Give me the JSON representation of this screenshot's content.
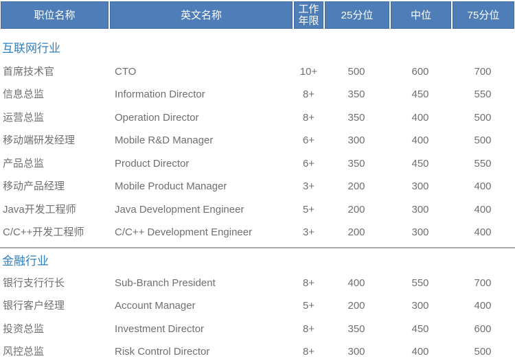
{
  "colors": {
    "header_bg": "#4e7db8",
    "header_border": "#3d6ba2",
    "header_text": "#ffffff",
    "section_title": "#2d7fc1",
    "body_text": "#6f6f6f",
    "divider": "#a9a9a9",
    "page_bg": "#ffffff"
  },
  "table": {
    "columns": [
      "职位名称",
      "英文名称",
      "工作年限",
      "25分位",
      "中位",
      "75分位"
    ],
    "sections": [
      {
        "title": "互联网行业",
        "rows": [
          {
            "position": "首席技术官",
            "english": "CTO",
            "years": "10+",
            "p25": "500",
            "median": "600",
            "p75": "700"
          },
          {
            "position": "信息总监",
            "english": "Information Director",
            "years": "8+",
            "p25": "350",
            "median": "450",
            "p75": "550"
          },
          {
            "position": "运营总监",
            "english": "Operation Director",
            "years": "8+",
            "p25": "350",
            "median": "400",
            "p75": "500"
          },
          {
            "position": "移动端研发经理",
            "english": "Mobile R&D Manager",
            "years": "6+",
            "p25": "300",
            "median": "400",
            "p75": "500"
          },
          {
            "position": "产品总监",
            "english": "Product Director",
            "years": "6+",
            "p25": "350",
            "median": "450",
            "p75": "550"
          },
          {
            "position": "移动产品经理",
            "english": "Mobile Product Manager",
            "years": "3+",
            "p25": "200",
            "median": "300",
            "p75": "400"
          },
          {
            "position": "Java开发工程师",
            "english": "Java Development Engineer",
            "years": "5+",
            "p25": "200",
            "median": "300",
            "p75": "400"
          },
          {
            "position": "C/C++开发工程师",
            "english": "C/C++ Development Engineer",
            "years": "3+",
            "p25": "200",
            "median": "300",
            "p75": "400"
          }
        ]
      },
      {
        "title": "金融行业",
        "rows": [
          {
            "position": "银行支行行长",
            "english": "Sub-Branch President",
            "years": "8+",
            "p25": "400",
            "median": "550",
            "p75": "700"
          },
          {
            "position": "银行客户经理",
            "english": "Account Manager",
            "years": "5+",
            "p25": "200",
            "median": "300",
            "p75": "400"
          },
          {
            "position": "投资总监",
            "english": "Investment Director",
            "years": "8+",
            "p25": "350",
            "median": "450",
            "p75": "600"
          },
          {
            "position": "风控总监",
            "english": "Risk Control Director",
            "years": "8+",
            "p25": "300",
            "median": "400",
            "p75": "500"
          }
        ]
      }
    ]
  }
}
